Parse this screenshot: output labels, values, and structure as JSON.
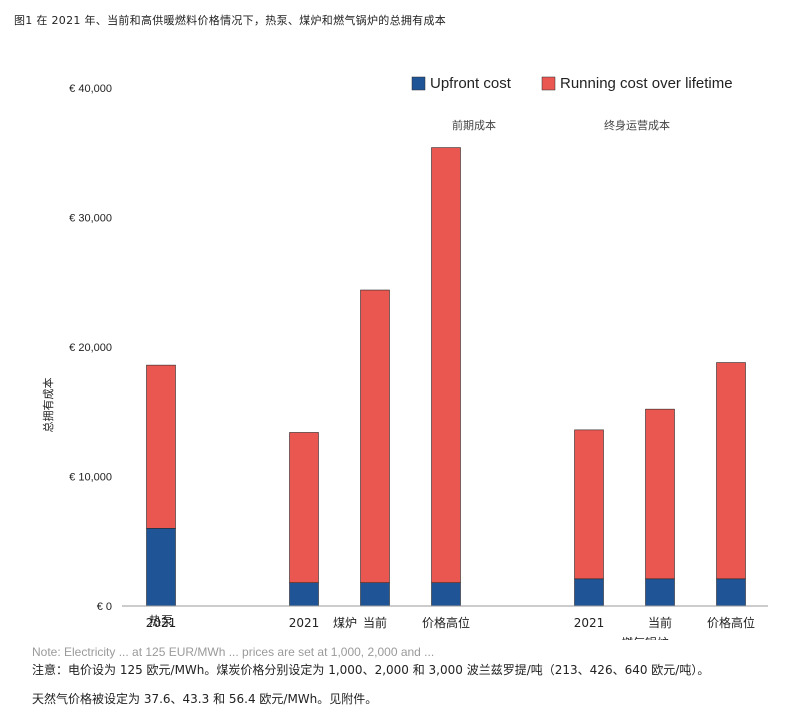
{
  "figure_title": "图1 在 2021 年、当前和高供暖燃料价格情况下，热泵、煤炉和燃气锅炉的总拥有成本",
  "chart_data": {
    "type": "bar",
    "stacked": true,
    "ylabel": "总拥有成本",
    "ylim": [
      0,
      40000
    ],
    "yticks": [
      0,
      10000,
      20000,
      30000,
      40000
    ],
    "ytick_labels": [
      "€ 0",
      "€ 10,000",
      "€ 20,000",
      "€ 30,000",
      "€ 40,000"
    ],
    "legend_position": "top-right",
    "grid": false,
    "series": [
      {
        "name": "Upfront cost",
        "color": "#1f5497",
        "values": [
          6000,
          1800,
          1800,
          1800,
          2100,
          2100,
          2100
        ]
      },
      {
        "name": "Running cost over lifetime",
        "color": "#ea5650",
        "values": [
          12600,
          11600,
          22600,
          33600,
          11500,
          13100,
          16700
        ]
      }
    ],
    "categories": [
      "2021",
      "2021",
      "当前",
      "价格高位",
      "2021",
      "当前",
      "价格高位"
    ],
    "category_sublabels": [
      "热泵",
      "煤炉",
      "燃气锅炉"
    ],
    "annotations": [
      "前期成本",
      "终身运营成本"
    ]
  },
  "notes": {
    "ghost_line": "Note: Electricity ... at 125 EUR/MWh ... prices are set at 1,000, 2,000 and ...",
    "line1": "注意：电价设为 125 欧元/MWh。煤炭价格分别设定为 1,000、2,000 和 3,000 波兰兹罗提/吨（213、426、640 欧元/吨）。",
    "line2": "天然气价格被设定为 37.6、43.3 和 56.4 欧元/MWh。见附件。"
  }
}
